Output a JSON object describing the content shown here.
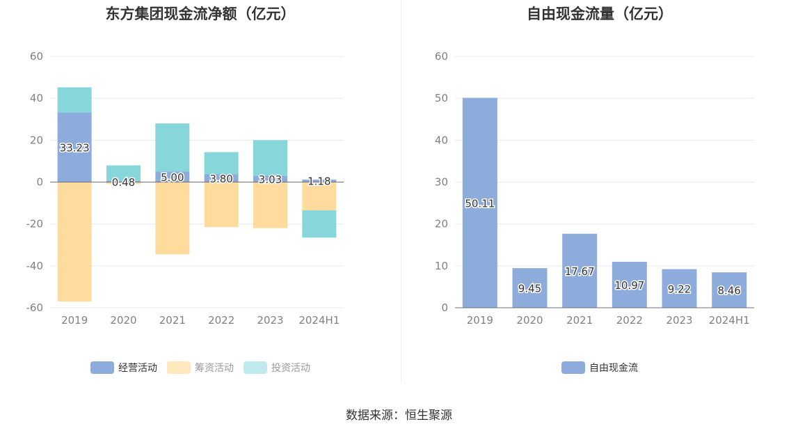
{
  "chart_data": [
    {
      "type": "bar",
      "stacked": true,
      "title": "东方集团现金流净额（亿元）",
      "categories": [
        "2019",
        "2020",
        "2021",
        "2022",
        "2023",
        "2024H1"
      ],
      "ylim": [
        -60,
        60
      ],
      "yticks": [
        60,
        40,
        20,
        0,
        -20,
        -40,
        -60
      ],
      "grid": true,
      "legend_position": "bottom",
      "series": [
        {
          "name": "经营活动",
          "color": "#8eacdb",
          "values": [
            33.23,
            0.48,
            5.0,
            3.8,
            3.03,
            1.18
          ],
          "labels": [
            "33.23",
            "0.48",
            "5.00",
            "3.80",
            "3.03",
            "1.18"
          ]
        },
        {
          "name": "筹资活动",
          "color": "#ffdc9e",
          "values": [
            -57,
            -1,
            -34.5,
            -21.5,
            -22,
            -13.5
          ]
        },
        {
          "name": "投资活动",
          "color": "#87d7da",
          "values": [
            12,
            7.5,
            23,
            10.5,
            17,
            -13
          ]
        }
      ]
    },
    {
      "type": "bar",
      "title": "自由现金流量（亿元）",
      "categories": [
        "2019",
        "2020",
        "2021",
        "2022",
        "2023",
        "2024H1"
      ],
      "ylim": [
        0,
        60
      ],
      "yticks": [
        60,
        50,
        40,
        30,
        20,
        10,
        0
      ],
      "grid": true,
      "legend_position": "bottom",
      "series": [
        {
          "name": "自由现金流",
          "color": "#8eacdb",
          "values": [
            50.11,
            9.45,
            17.67,
            10.97,
            9.22,
            8.46
          ],
          "labels": [
            "50.11",
            "9.45",
            "17.67",
            "10.97",
            "9.22",
            "8.46"
          ]
        }
      ]
    }
  ],
  "source_text": "数据来源：恒生聚源"
}
